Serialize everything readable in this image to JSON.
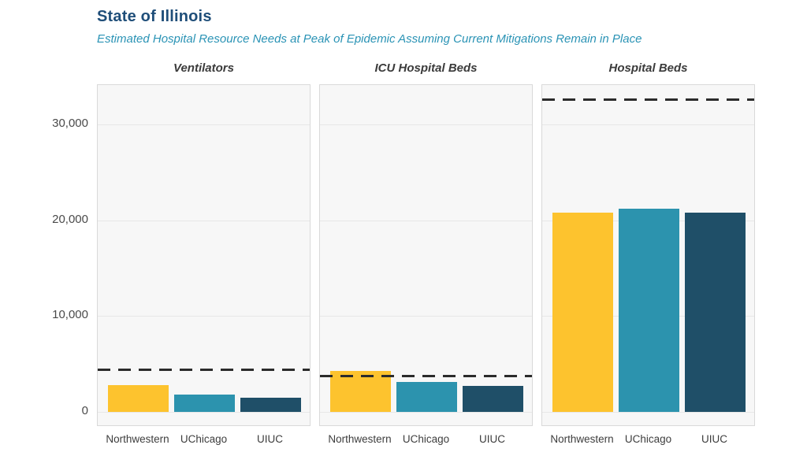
{
  "header": {
    "title": "State of Illinois",
    "subtitle": "Estimated Hospital Resource Needs at Peak of Epidemic Assuming Current Mitigations Remain in Place"
  },
  "colors": {
    "title_text": "#1f4e79",
    "subtitle_text": "#2a93b5",
    "panel_title_text": "#3b3b3b",
    "capacity_line": "#2b2b2b",
    "panel_background": "#f7f7f7",
    "panel_border": "#d9d9d9",
    "gridline": "#e7e7e7"
  },
  "chart_data": {
    "type": "bar",
    "categories": [
      "Northwestern",
      "UChicago",
      "UIUC"
    ],
    "series_colors": [
      "#fdc32e",
      "#2c93ae",
      "#1f4f68"
    ],
    "y_tick_labels": [
      "0",
      "10,000",
      "20,000",
      "30,000"
    ],
    "y_tick_values": [
      0,
      10000,
      20000,
      30000
    ],
    "ylim": [
      0,
      34100
    ],
    "grid": true,
    "legend": "none",
    "capacity_line_style": "dashed",
    "panels": [
      {
        "title": "Ventilators",
        "values": [
          2800,
          1800,
          1500
        ],
        "capacity_line": 4400
      },
      {
        "title": "ICU Hospital Beds",
        "values": [
          4250,
          3150,
          2750
        ],
        "capacity_line": 3750
      },
      {
        "title": "Hospital Beds",
        "values": [
          20800,
          21200,
          20800
        ],
        "capacity_line": 32600
      }
    ]
  }
}
